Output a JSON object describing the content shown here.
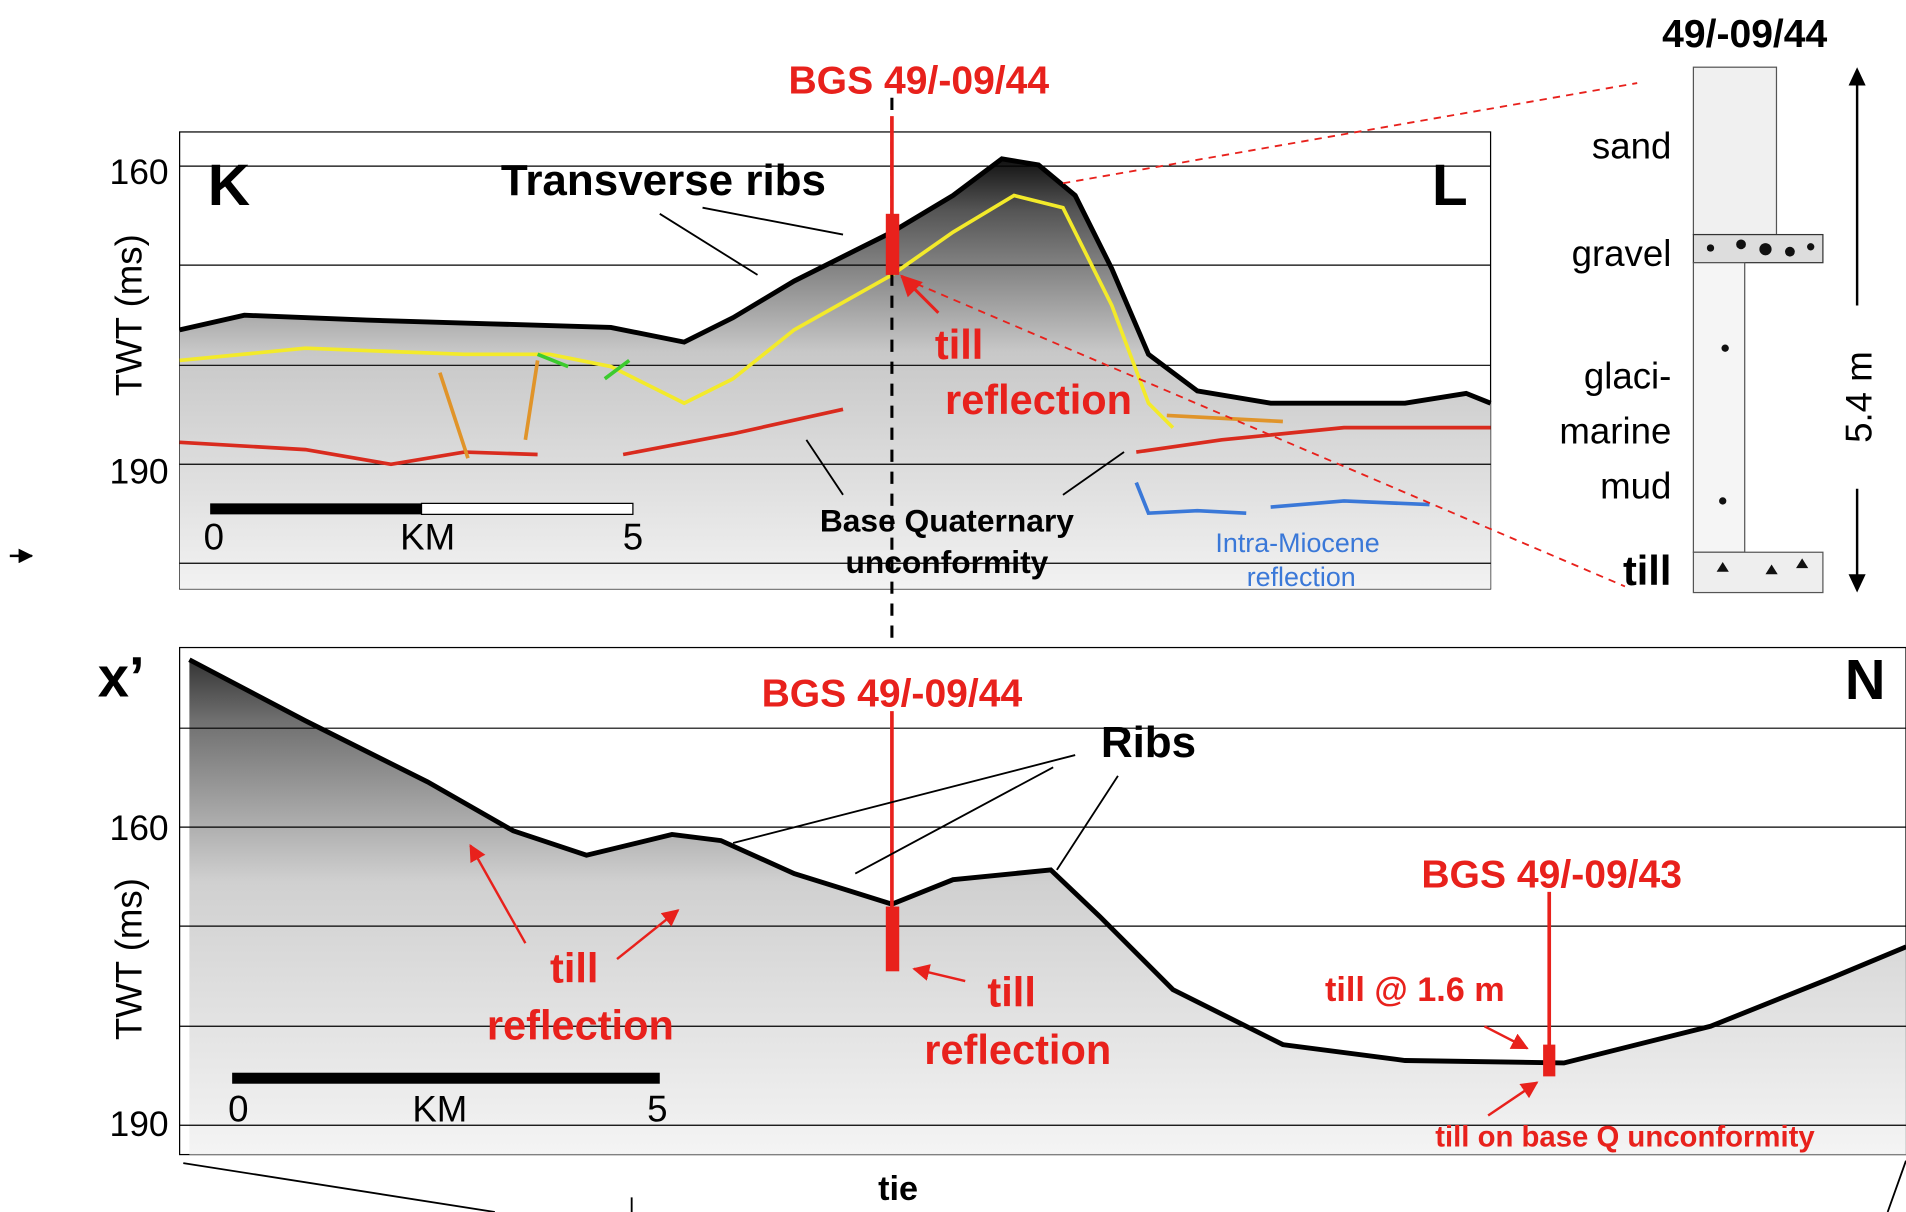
{
  "top_panel": {
    "title": "BGS 49/-09/44",
    "y_axis_label": "TWT (ms)",
    "y_ticks": [
      "160",
      "190"
    ],
    "left_label": "K",
    "right_label": "L",
    "ribs_label": "Transverse ribs",
    "till_label": [
      "till",
      "reflection"
    ],
    "unconformity_label": [
      "Base Quaternary",
      "unconformity"
    ],
    "miocene_label": [
      "Intra-Miocene",
      "reflection"
    ],
    "scale": [
      "0",
      "KM",
      "5"
    ]
  },
  "core_log": {
    "title": "49/-09/44",
    "layers": [
      "sand",
      "gravel",
      "glaci-",
      "marine",
      "mud",
      "till"
    ],
    "thickness": "5.4 m"
  },
  "bottom_panel": {
    "left_label": "x’",
    "right_label": "N",
    "title": "BGS 49/-09/44",
    "y_axis_label": "TWT (ms)",
    "y_ticks": [
      "160",
      "190"
    ],
    "ribs_label": "Ribs",
    "till_label_left": [
      "till",
      "reflection"
    ],
    "till_label_center": [
      "till",
      "reflection"
    ],
    "borehole_2": "BGS 49/-09/43",
    "till_depth": "till @ 1.6 m",
    "till_unconformity": "till on base Q unconformity",
    "scale": [
      "0",
      "KM",
      "5"
    ]
  },
  "tie_label": "tie"
}
